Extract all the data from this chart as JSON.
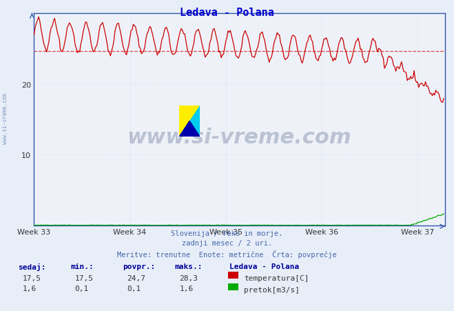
{
  "title": "Ledava - Polana",
  "title_color": "#0000cc",
  "bg_color": "#e8eef8",
  "plot_bg_color": "#eef2f8",
  "grid_color": "#c8d0e0",
  "grid_color_minor": "#dde4ee",
  "x_tick_labels": [
    "Week 33",
    "Week 34",
    "Week 35",
    "Week 36",
    "Week 37"
  ],
  "x_tick_positions": [
    0,
    84,
    168,
    252,
    336
  ],
  "y_ticks": [
    10,
    20
  ],
  "ylim": [
    0,
    30
  ],
  "xlim": [
    0,
    360
  ],
  "avg_line_value": 24.7,
  "avg_line_color": "#dd4444",
  "temp_color": "#cc0000",
  "flow_color": "#00aa00",
  "spine_color": "#3355aa",
  "watermark_text": "www.si-vreme.com",
  "watermark_color": "#223366",
  "watermark_alpha": 0.25,
  "subtitle_lines": [
    "Slovenija / reke in morje.",
    "zadnji mesec / 2 uri.",
    "Meritve: trenutne  Enote: metrične  Črta: povprečje"
  ],
  "subtitle_color": "#4466aa",
  "legend_title": "Ledava - Polana",
  "legend_items": [
    {
      "label": "temperatura[C]",
      "color": "#cc0000"
    },
    {
      "label": "pretok[m3/s]",
      "color": "#00aa00"
    }
  ],
  "stats_headers": [
    "sedaj:",
    "min.:",
    "povpr.:",
    "maks.:"
  ],
  "stats_temp": [
    "17,5",
    "17,5",
    "24,7",
    "28,3"
  ],
  "stats_flow": [
    "1,6",
    "0,1",
    "0,1",
    "1,6"
  ],
  "n_points": 360,
  "temp_max": 28.3,
  "temp_min": 17.5,
  "temp_avg": 24.7,
  "temp_end": 17.5,
  "logo_colors": {
    "yellow": "#ffee00",
    "cyan": "#00ccee",
    "blue": "#0000aa"
  }
}
